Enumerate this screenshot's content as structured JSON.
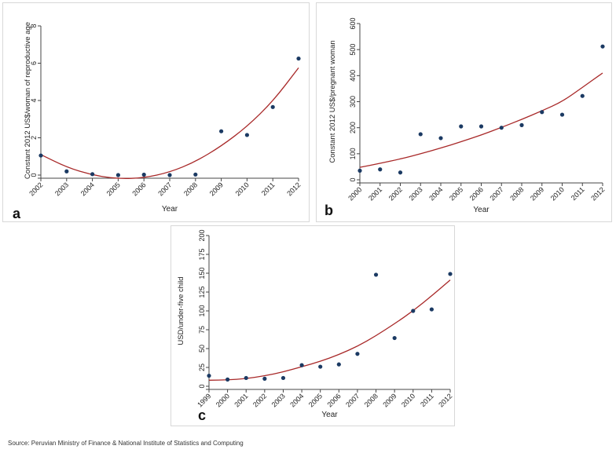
{
  "colors": {
    "fit_line": "#a82828",
    "points": "#1b3a63",
    "axis": "#444444",
    "text": "#222222"
  },
  "source": "Source: Peruvian Ministry of Finance & National Institute of Statistics and Computing",
  "chart_data": [
    {
      "panel": "a",
      "type": "scatter",
      "ylabel": "Constant 2012 US$/woman of reproductive age",
      "xlabel": "Year",
      "x": [
        2002,
        2003,
        2004,
        2005,
        2006,
        2007,
        2008,
        2009,
        2010,
        2011,
        2012
      ],
      "y": [
        1.05,
        0.2,
        0.05,
        0.0,
        0.02,
        0.0,
        0.03,
        2.35,
        2.15,
        3.65,
        6.25
      ],
      "xlim": [
        2002,
        2012
      ],
      "ylim": [
        0,
        8
      ],
      "yticks": [
        0,
        2,
        4,
        6,
        8
      ],
      "trend": {
        "type": "quadratic",
        "curve": [
          [
            2002,
            1.1
          ],
          [
            2003,
            0.42
          ],
          [
            2004,
            0.0
          ],
          [
            2005,
            -0.2
          ],
          [
            2006,
            -0.15
          ],
          [
            2007,
            0.15
          ],
          [
            2008,
            0.72
          ],
          [
            2009,
            1.55
          ],
          [
            2010,
            2.6
          ],
          [
            2011,
            3.95
          ],
          [
            2012,
            5.75
          ]
        ]
      }
    },
    {
      "panel": "b",
      "type": "scatter",
      "ylabel": "Constant 2012 US$/pregnant woman",
      "xlabel": "Year",
      "x": [
        2000,
        2001,
        2002,
        2003,
        2004,
        2005,
        2006,
        2007,
        2008,
        2009,
        2010,
        2011,
        2012
      ],
      "y": [
        35,
        40,
        28,
        175,
        160,
        205,
        205,
        200,
        210,
        260,
        250,
        322,
        512
      ],
      "xlim": [
        2000,
        2012
      ],
      "ylim": [
        0,
        600
      ],
      "yticks": [
        0,
        100,
        200,
        300,
        400,
        500,
        600
      ],
      "trend": {
        "type": "quadratic",
        "curve": [
          [
            2000,
            48
          ],
          [
            2001,
            63
          ],
          [
            2002,
            80
          ],
          [
            2003,
            100
          ],
          [
            2004,
            122
          ],
          [
            2005,
            146
          ],
          [
            2006,
            172
          ],
          [
            2007,
            201
          ],
          [
            2008,
            232
          ],
          [
            2009,
            265
          ],
          [
            2010,
            300
          ],
          [
            2011,
            355
          ],
          [
            2012,
            410
          ]
        ]
      }
    },
    {
      "panel": "c",
      "type": "scatter",
      "ylabel": "USD/under-five child",
      "xlabel": "Year",
      "x": [
        1999,
        2000,
        2001,
        2002,
        2003,
        2004,
        2005,
        2006,
        2007,
        2008,
        2009,
        2010,
        2011,
        2012
      ],
      "y": [
        14,
        9,
        11,
        10,
        11,
        28,
        26,
        29,
        43,
        148,
        64,
        100,
        102,
        149
      ],
      "xlim": [
        1999,
        2012
      ],
      "ylim": [
        0,
        200
      ],
      "yticks": [
        0,
        25,
        50,
        75,
        100,
        125,
        150,
        175,
        200
      ],
      "trend": {
        "type": "quadratic",
        "curve": [
          [
            1999,
            8
          ],
          [
            2000,
            8.5
          ],
          [
            2001,
            10
          ],
          [
            2002,
            14
          ],
          [
            2003,
            19
          ],
          [
            2004,
            26
          ],
          [
            2005,
            33
          ],
          [
            2006,
            42
          ],
          [
            2007,
            53
          ],
          [
            2008,
            67
          ],
          [
            2009,
            83
          ],
          [
            2010,
            100
          ],
          [
            2011,
            120
          ],
          [
            2012,
            141
          ]
        ]
      }
    }
  ],
  "panels": {
    "a": {
      "letter": "a"
    },
    "b": {
      "letter": "b"
    },
    "c": {
      "letter": "c"
    }
  }
}
